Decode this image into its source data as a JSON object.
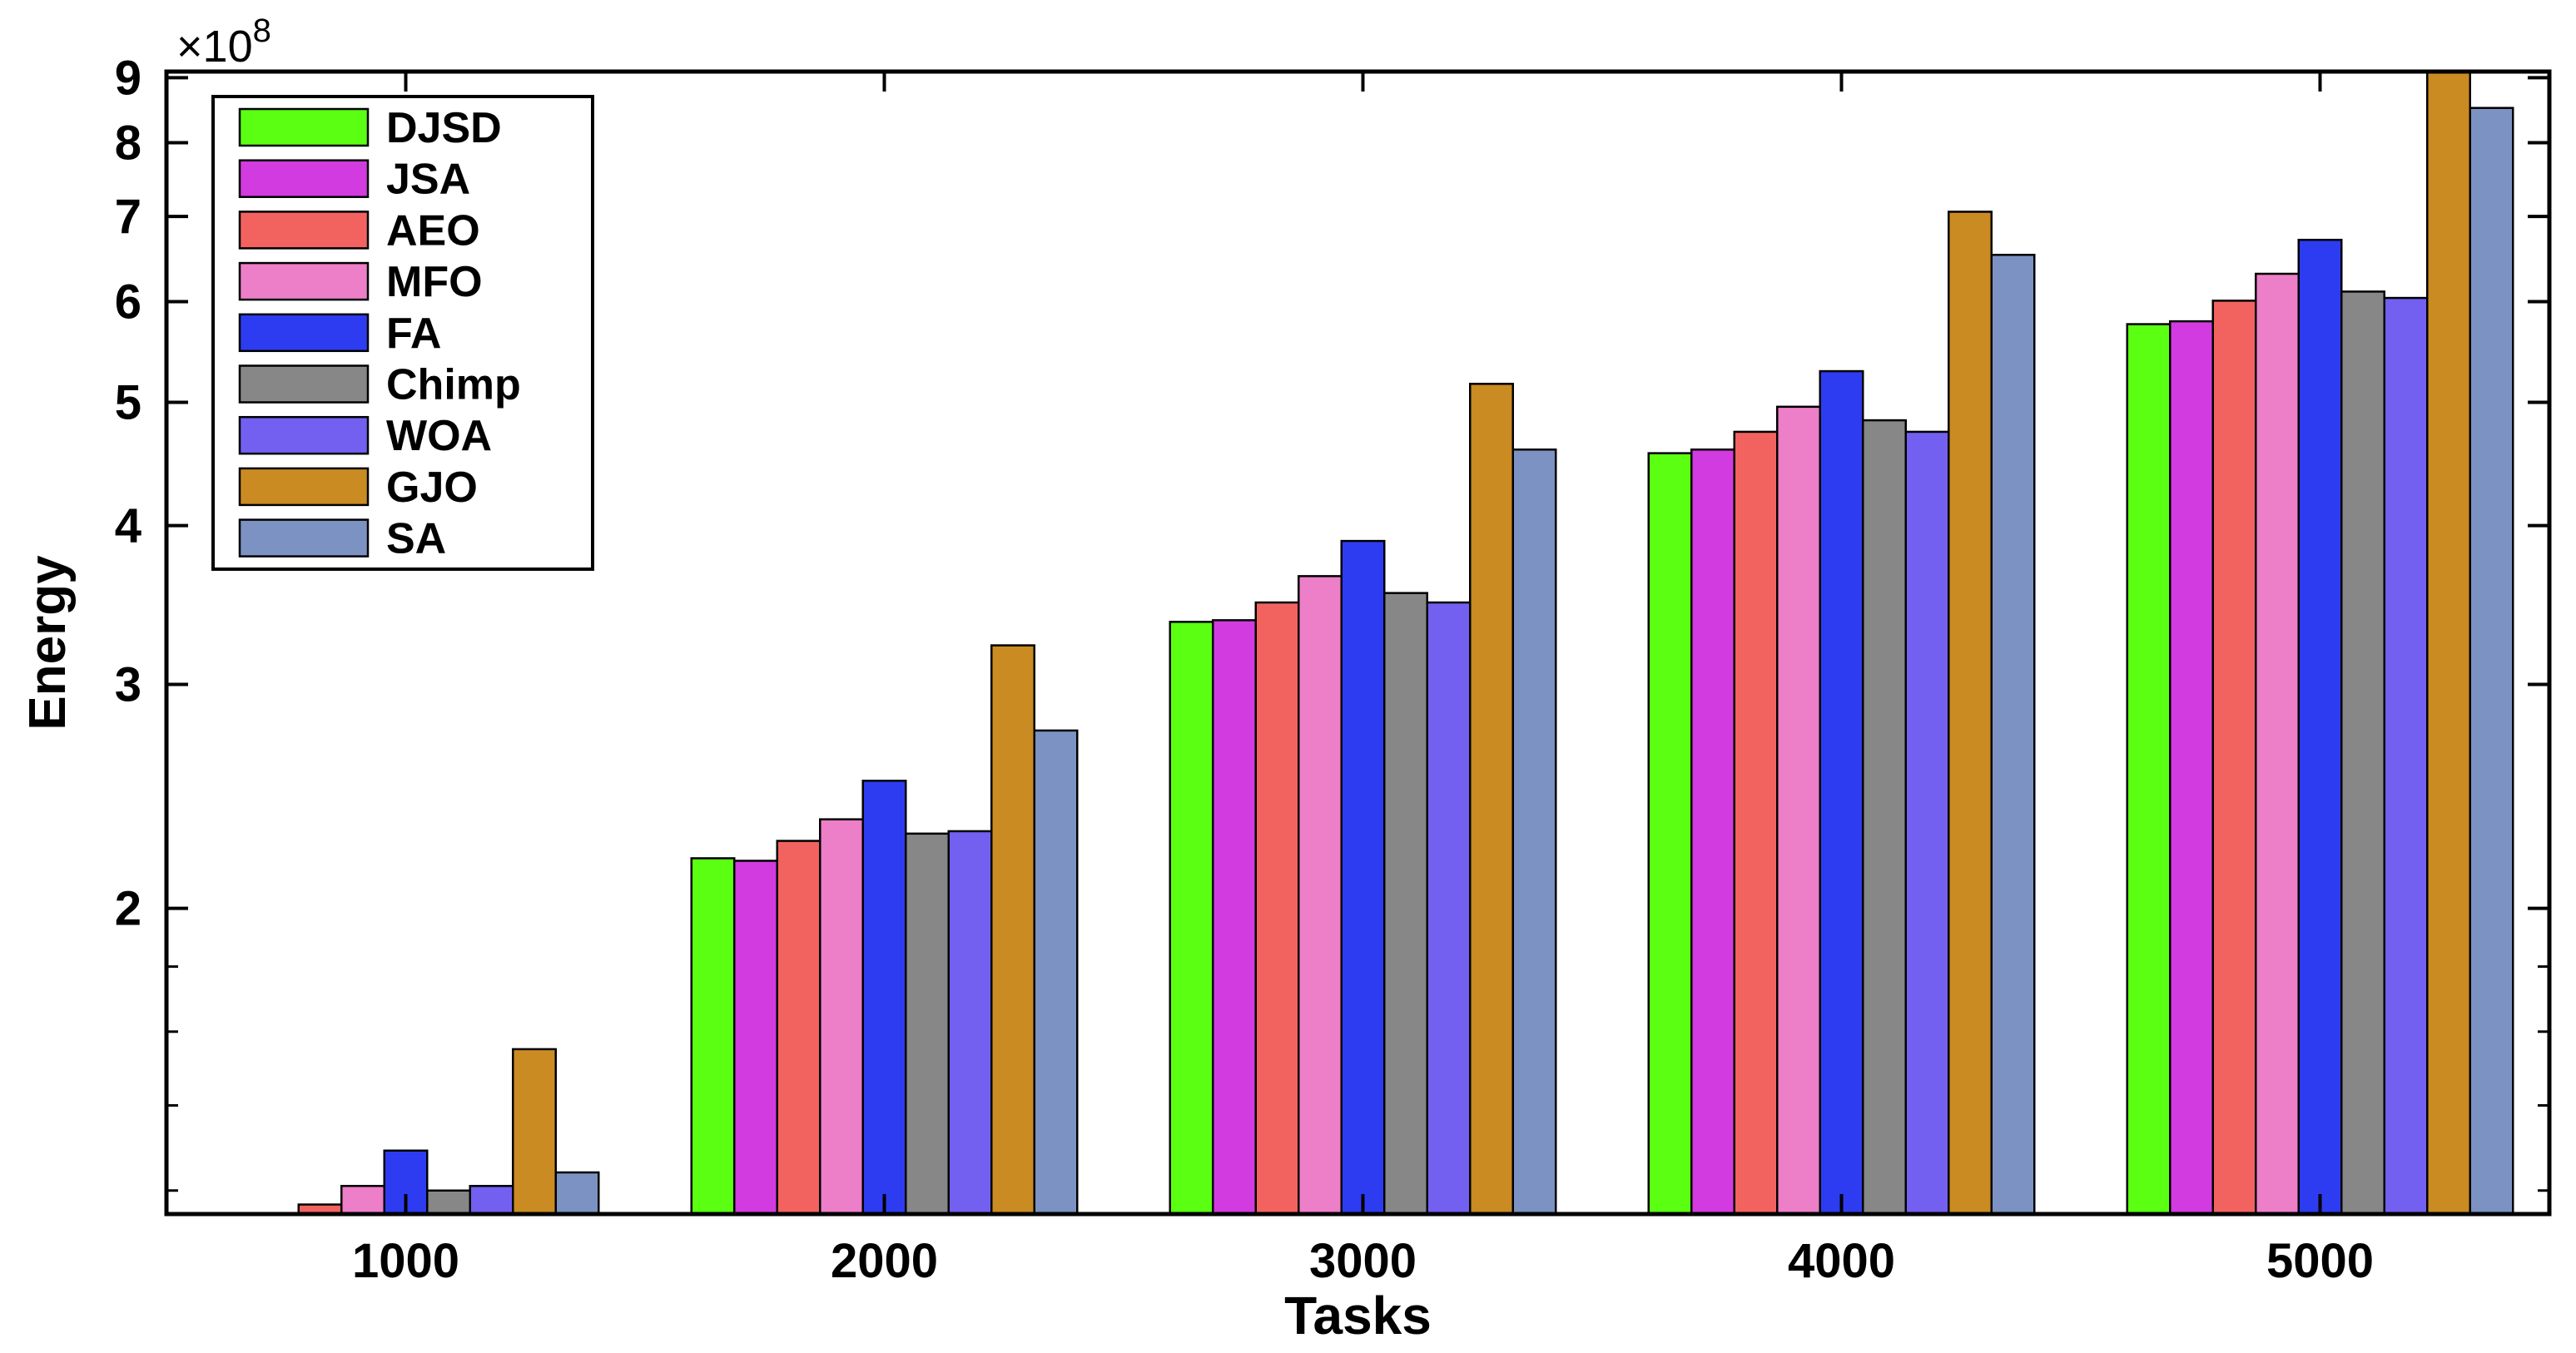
{
  "chart_data": {
    "type": "bar",
    "xlabel": "Tasks",
    "ylabel": "Energy",
    "y_multiplier": {
      "base": "10",
      "exponent": "8"
    },
    "y_scale": "log",
    "ylim": [
      1.15,
      9.1
    ],
    "y_ticks": [
      "2",
      "3",
      "4",
      "5",
      "6",
      "7",
      "8",
      "9"
    ],
    "categories": [
      "1000",
      "2000",
      "3000",
      "4000",
      "5000"
    ],
    "grid": false,
    "legend_position": "top-left",
    "series": [
      {
        "name": "DJSD",
        "color": "#5aff12",
        "values": [
          1.12,
          2.19,
          3.36,
          4.56,
          5.76
        ]
      },
      {
        "name": "JSA",
        "color": "#d23bdf",
        "values": [
          1.14,
          2.18,
          3.37,
          4.59,
          5.79
        ]
      },
      {
        "name": "AEO",
        "color": "#f26360",
        "values": [
          1.17,
          2.26,
          3.48,
          4.74,
          6.01
        ]
      },
      {
        "name": "MFO",
        "color": "#ec7fc8",
        "values": [
          1.21,
          2.35,
          3.65,
          4.96,
          6.31
        ]
      },
      {
        "name": "FA",
        "color": "#2d3cf1",
        "values": [
          1.29,
          2.52,
          3.89,
          5.29,
          6.71
        ]
      },
      {
        "name": "Chimp",
        "color": "#878787",
        "values": [
          1.2,
          2.29,
          3.54,
          4.84,
          6.11
        ]
      },
      {
        "name": "WOA",
        "color": "#7360f0",
        "values": [
          1.21,
          2.3,
          3.48,
          4.74,
          6.04
        ]
      },
      {
        "name": "GJO",
        "color": "#ca8b23",
        "values": [
          1.55,
          3.22,
          5.17,
          7.06,
          9.1
        ]
      },
      {
        "name": "SA",
        "color": "#7c92c2",
        "values": [
          1.24,
          2.76,
          4.59,
          6.53,
          8.52
        ]
      }
    ]
  }
}
